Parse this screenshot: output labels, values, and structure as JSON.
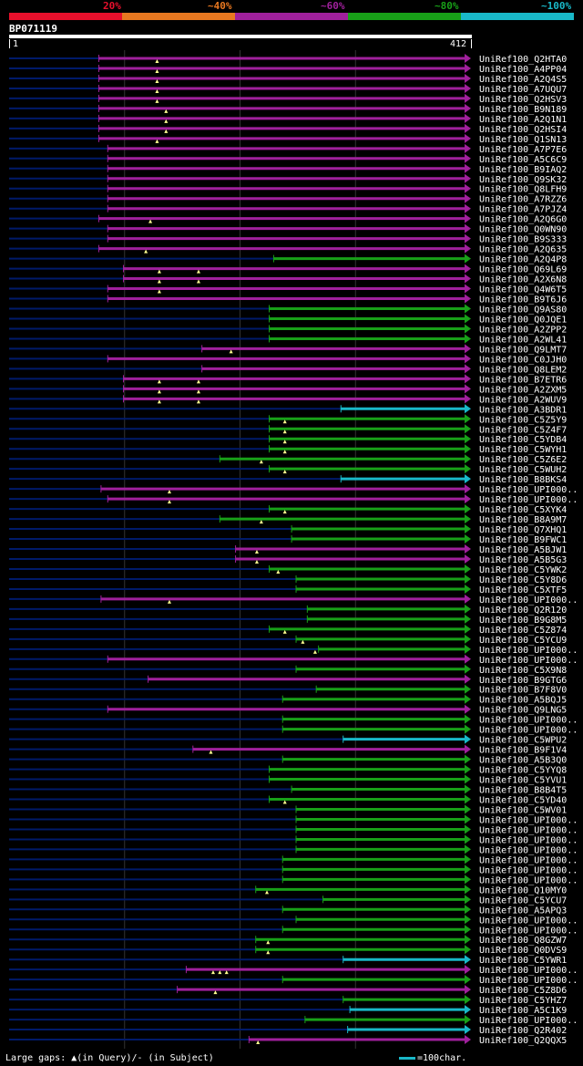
{
  "header": {
    "percent_labels": [
      "20%",
      "~40%",
      "~60%",
      "~80%",
      "~100%"
    ],
    "colors": [
      "#e8102c",
      "#e87820",
      "#a0209c",
      "#18a018",
      "#19b8c8"
    ]
  },
  "query": {
    "name": "BP071119",
    "start": "1",
    "end": "412",
    "length": 412
  },
  "hit_colors": {
    "purple": "#a0209c",
    "green": "#18a018",
    "cyan": "#19b8c8",
    "unaligned": "#001a6a",
    "gap_marker": "#ffff90"
  },
  "hits": [
    {
      "name": "UniRef100_Q2HTA0",
      "color": "purple",
      "start": 80,
      "gaps": [
        132
      ]
    },
    {
      "name": "UniRef100_A4PP04",
      "color": "purple",
      "start": 80,
      "gaps": [
        132
      ]
    },
    {
      "name": "UniRef100_A2Q4S5",
      "color": "purple",
      "start": 80,
      "gaps": [
        132
      ]
    },
    {
      "name": "UniRef100_A7UQU7",
      "color": "purple",
      "start": 80,
      "gaps": [
        132
      ]
    },
    {
      "name": "UniRef100_Q2HSV3",
      "color": "purple",
      "start": 80,
      "gaps": [
        132
      ]
    },
    {
      "name": "UniRef100_B9N189",
      "color": "purple",
      "start": 80,
      "gaps": [
        140
      ]
    },
    {
      "name": "UniRef100_A2Q1N1",
      "color": "purple",
      "start": 80,
      "gaps": [
        140
      ]
    },
    {
      "name": "UniRef100_Q2HSI4",
      "color": "purple",
      "start": 80,
      "gaps": [
        140
      ]
    },
    {
      "name": "UniRef100_Q1SN13",
      "color": "purple",
      "start": 80,
      "gaps": [
        132
      ]
    },
    {
      "name": "UniRef100_A7P7E6",
      "color": "purple",
      "start": 88,
      "gaps": []
    },
    {
      "name": "UniRef100_A5C6C9",
      "color": "purple",
      "start": 88,
      "gaps": []
    },
    {
      "name": "UniRef100_B9IAQ2",
      "color": "purple",
      "start": 88,
      "gaps": []
    },
    {
      "name": "UniRef100_Q9SK32",
      "color": "purple",
      "start": 88,
      "gaps": []
    },
    {
      "name": "UniRef100_Q8LFH9",
      "color": "purple",
      "start": 88,
      "gaps": []
    },
    {
      "name": "UniRef100_A7RZZ6",
      "color": "purple",
      "start": 88,
      "gaps": []
    },
    {
      "name": "UniRef100_A7PJZ4",
      "color": "purple",
      "start": 88,
      "gaps": []
    },
    {
      "name": "UniRef100_A2Q6G0",
      "color": "purple",
      "start": 80,
      "gaps": [
        126
      ]
    },
    {
      "name": "UniRef100_Q0WN90",
      "color": "purple",
      "start": 88,
      "gaps": []
    },
    {
      "name": "UniRef100_B9S333",
      "color": "purple",
      "start": 88,
      "gaps": []
    },
    {
      "name": "UniRef100_A2Q635",
      "color": "purple",
      "start": 80,
      "gaps": [
        122
      ]
    },
    {
      "name": "UniRef100_A2Q4P8",
      "color": "green",
      "start": 236,
      "gaps": []
    },
    {
      "name": "UniRef100_Q69L69",
      "color": "purple",
      "start": 102,
      "gaps": [
        134,
        169
      ]
    },
    {
      "name": "UniRef100_A2X6N8",
      "color": "purple",
      "start": 102,
      "gaps": [
        134,
        169
      ]
    },
    {
      "name": "UniRef100_Q4W6T5",
      "color": "purple",
      "start": 88,
      "gaps": [
        134
      ]
    },
    {
      "name": "UniRef100_B9T6J6",
      "color": "purple",
      "start": 88,
      "gaps": []
    },
    {
      "name": "UniRef100_Q9AS80",
      "color": "green",
      "start": 232,
      "gaps": []
    },
    {
      "name": "UniRef100_Q0JQE1",
      "color": "green",
      "start": 232,
      "gaps": []
    },
    {
      "name": "UniRef100_A2ZPP2",
      "color": "green",
      "start": 232,
      "gaps": []
    },
    {
      "name": "UniRef100_A2WL41",
      "color": "green",
      "start": 232,
      "gaps": []
    },
    {
      "name": "UniRef100_Q9LMT7",
      "color": "purple",
      "start": 172,
      "gaps": [
        198
      ]
    },
    {
      "name": "UniRef100_C0JJH0",
      "color": "purple",
      "start": 88,
      "gaps": []
    },
    {
      "name": "UniRef100_Q8LEM2",
      "color": "purple",
      "start": 172,
      "gaps": []
    },
    {
      "name": "UniRef100_B7ETR6",
      "color": "purple",
      "start": 102,
      "gaps": [
        134,
        169
      ]
    },
    {
      "name": "UniRef100_A2ZXM5",
      "color": "purple",
      "start": 102,
      "gaps": [
        134,
        169
      ]
    },
    {
      "name": "UniRef100_A2WUV9",
      "color": "purple",
      "start": 102,
      "gaps": [
        134,
        169
      ]
    },
    {
      "name": "UniRef100_A3BDR1",
      "color": "cyan",
      "start": 296,
      "gaps": []
    },
    {
      "name": "UniRef100_C5Z5Y9",
      "color": "green",
      "start": 232,
      "gaps": [
        246
      ]
    },
    {
      "name": "UniRef100_C5Z4F7",
      "color": "green",
      "start": 232,
      "gaps": [
        246
      ]
    },
    {
      "name": "UniRef100_C5YDB4",
      "color": "green",
      "start": 232,
      "gaps": [
        246
      ]
    },
    {
      "name": "UniRef100_C5WYH1",
      "color": "green",
      "start": 232,
      "gaps": [
        246
      ]
    },
    {
      "name": "UniRef100_C5Z6E2",
      "color": "green",
      "start": 188,
      "gaps": [
        225
      ]
    },
    {
      "name": "UniRef100_C5WUH2",
      "color": "green",
      "start": 232,
      "gaps": [
        246
      ]
    },
    {
      "name": "UniRef100_B8BKS4",
      "color": "cyan",
      "start": 296,
      "gaps": []
    },
    {
      "name": "UniRef100_UPI000..",
      "color": "purple",
      "start": 82,
      "gaps": [
        143
      ]
    },
    {
      "name": "UniRef100_UPI000..",
      "color": "purple",
      "start": 88,
      "gaps": [
        143
      ]
    },
    {
      "name": "UniRef100_C5XYK4",
      "color": "green",
      "start": 232,
      "gaps": [
        246
      ]
    },
    {
      "name": "UniRef100_B8A9M7",
      "color": "green",
      "start": 188,
      "gaps": [
        225
      ]
    },
    {
      "name": "UniRef100_Q7XHQ1",
      "color": "green",
      "start": 252,
      "gaps": []
    },
    {
      "name": "UniRef100_B9FWC1",
      "color": "green",
      "start": 252,
      "gaps": []
    },
    {
      "name": "UniRef100_A5BJW1",
      "color": "purple",
      "start": 202,
      "gaps": [
        221
      ]
    },
    {
      "name": "UniRef100_A5B5G3",
      "color": "purple",
      "start": 202,
      "gaps": [
        221
      ]
    },
    {
      "name": "UniRef100_C5YWK2",
      "color": "green",
      "start": 232,
      "gaps": [
        240
      ]
    },
    {
      "name": "UniRef100_C5Y8D6",
      "color": "green",
      "start": 256,
      "gaps": []
    },
    {
      "name": "UniRef100_C5XTF5",
      "color": "green",
      "start": 256,
      "gaps": []
    },
    {
      "name": "UniRef100_UPI000..",
      "color": "purple",
      "start": 82,
      "gaps": [
        143
      ]
    },
    {
      "name": "UniRef100_Q2R120",
      "color": "green",
      "start": 266,
      "gaps": []
    },
    {
      "name": "UniRef100_B9G8M5",
      "color": "green",
      "start": 266,
      "gaps": []
    },
    {
      "name": "UniRef100_C5Z874",
      "color": "green",
      "start": 232,
      "gaps": [
        246
      ]
    },
    {
      "name": "UniRef100_C5YCU9",
      "color": "green",
      "start": 256,
      "gaps": [
        262
      ]
    },
    {
      "name": "UniRef100_UPI000..",
      "color": "green",
      "start": 276,
      "gaps": [
        273
      ]
    },
    {
      "name": "UniRef100_UPI000..",
      "color": "purple",
      "start": 88,
      "gaps": []
    },
    {
      "name": "UniRef100_C5X9N8",
      "color": "green",
      "start": 256,
      "gaps": []
    },
    {
      "name": "UniRef100_B9GTG6",
      "color": "purple",
      "start": 124,
      "gaps": []
    },
    {
      "name": "UniRef100_B7F8V0",
      "color": "green",
      "start": 274,
      "gaps": []
    },
    {
      "name": "UniRef100_A5BQJ5",
      "color": "green",
      "start": 244,
      "gaps": []
    },
    {
      "name": "UniRef100_Q9LNG5",
      "color": "purple",
      "start": 88,
      "gaps": []
    },
    {
      "name": "UniRef100_UPI000..",
      "color": "green",
      "start": 244,
      "gaps": []
    },
    {
      "name": "UniRef100_UPI000..",
      "color": "green",
      "start": 244,
      "gaps": []
    },
    {
      "name": "UniRef100_C5WPU2",
      "color": "cyan",
      "start": 298,
      "gaps": []
    },
    {
      "name": "UniRef100_B9F1V4",
      "color": "purple",
      "start": 164,
      "gaps": [
        180
      ]
    },
    {
      "name": "UniRef100_A5B3Q0",
      "color": "green",
      "start": 244,
      "gaps": []
    },
    {
      "name": "UniRef100_C5YYQ8",
      "color": "green",
      "start": 232,
      "gaps": []
    },
    {
      "name": "UniRef100_C5YVU1",
      "color": "green",
      "start": 232,
      "gaps": []
    },
    {
      "name": "UniRef100_B8B4T5",
      "color": "green",
      "start": 252,
      "gaps": []
    },
    {
      "name": "UniRef100_C5YD40",
      "color": "green",
      "start": 232,
      "gaps": [
        246
      ]
    },
    {
      "name": "UniRef100_C5WV01",
      "color": "green",
      "start": 256,
      "gaps": []
    },
    {
      "name": "UniRef100_UPI000..",
      "color": "green",
      "start": 256,
      "gaps": []
    },
    {
      "name": "UniRef100_UPI000..",
      "color": "green",
      "start": 256,
      "gaps": []
    },
    {
      "name": "UniRef100_UPI000..",
      "color": "green",
      "start": 256,
      "gaps": []
    },
    {
      "name": "UniRef100_UPI000..",
      "color": "green",
      "start": 256,
      "gaps": []
    },
    {
      "name": "UniRef100_UPI000..",
      "color": "green",
      "start": 244,
      "gaps": []
    },
    {
      "name": "UniRef100_UPI000..",
      "color": "green",
      "start": 244,
      "gaps": []
    },
    {
      "name": "UniRef100_UPI000..",
      "color": "green",
      "start": 244,
      "gaps": []
    },
    {
      "name": "UniRef100_Q10MY0",
      "color": "green",
      "start": 220,
      "gaps": [
        230
      ]
    },
    {
      "name": "UniRef100_C5YCU7",
      "color": "green",
      "start": 280,
      "gaps": []
    },
    {
      "name": "UniRef100_A5APQ3",
      "color": "green",
      "start": 244,
      "gaps": []
    },
    {
      "name": "UniRef100_UPI000..",
      "color": "green",
      "start": 256,
      "gaps": []
    },
    {
      "name": "UniRef100_UPI000..",
      "color": "green",
      "start": 244,
      "gaps": []
    },
    {
      "name": "UniRef100_Q8GZW7",
      "color": "green",
      "start": 220,
      "gaps": [
        231
      ]
    },
    {
      "name": "UniRef100_Q0DVS9",
      "color": "green",
      "start": 220,
      "gaps": [
        231
      ]
    },
    {
      "name": "UniRef100_C5YWR1",
      "color": "cyan",
      "start": 298,
      "gaps": []
    },
    {
      "name": "UniRef100_UPI000..",
      "color": "purple",
      "start": 158,
      "gaps": [
        182,
        188,
        194
      ]
    },
    {
      "name": "UniRef100_UPI000..",
      "color": "green",
      "start": 244,
      "gaps": []
    },
    {
      "name": "UniRef100_C5Z8D6",
      "color": "purple",
      "start": 150,
      "gaps": [
        184
      ]
    },
    {
      "name": "UniRef100_C5YHZ7",
      "color": "green",
      "start": 298,
      "gaps": []
    },
    {
      "name": "UniRef100_A5C1K9",
      "color": "cyan",
      "start": 304,
      "gaps": []
    },
    {
      "name": "UniRef100_UPI000..",
      "color": "green",
      "start": 264,
      "gaps": []
    },
    {
      "name": "UniRef100_Q2R402",
      "color": "cyan",
      "start": 302,
      "gaps": []
    },
    {
      "name": "UniRef100_Q2QQX5",
      "color": "purple",
      "start": 214,
      "gaps": [
        222
      ]
    }
  ],
  "footer": {
    "gaps_legend": "Large gaps: ▲(in Query)/- (in Subject)",
    "scale_legend": "=100char."
  }
}
